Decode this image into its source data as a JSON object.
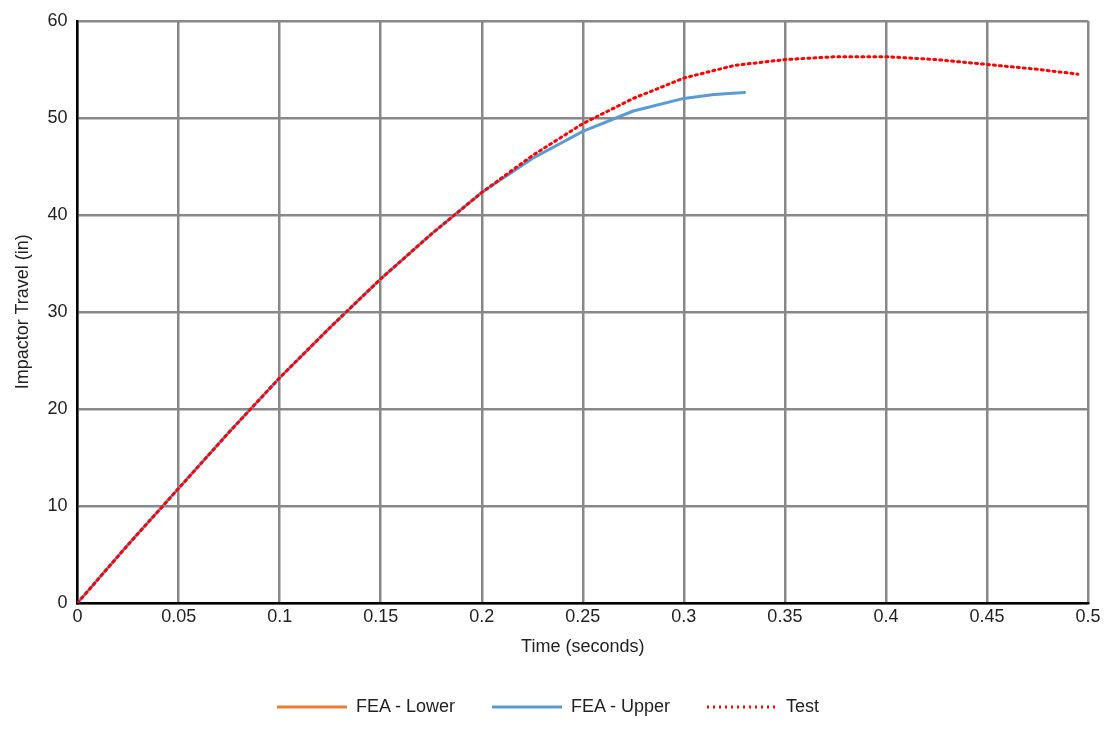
{
  "chart_data": {
    "type": "line",
    "xlabel": "Time (seconds)",
    "ylabel": "Impactor Travel (in)",
    "xlim": [
      0,
      0.5
    ],
    "xticks": [
      0,
      0.05,
      0.1,
      0.15,
      0.2,
      0.25,
      0.3,
      0.35,
      0.4,
      0.45,
      0.5
    ],
    "ylim": [
      0,
      60
    ],
    "yticks": [
      0,
      10,
      20,
      30,
      40,
      50,
      60
    ],
    "grid": true,
    "legend": "bottom",
    "marker": "none",
    "series": [
      {
        "name": "FEA - Lower",
        "color": "#ed7d31",
        "line_style": "solid"
      },
      {
        "name": "FEA - Upper",
        "color": "#5b9bd5",
        "line_style": "solid",
        "x": [
          0,
          0.025,
          0.05,
          0.075,
          0.1,
          0.125,
          0.15,
          0.175,
          0.2,
          0.225,
          0.25,
          0.275,
          0.3,
          0.315,
          0.33
        ],
        "values": [
          0,
          6,
          11.8,
          17.6,
          23.2,
          28.4,
          33.4,
          38,
          42.3,
          45.8,
          48.6,
          50.7,
          52.0,
          52.4,
          52.6
        ]
      },
      {
        "name": "Test",
        "color": "#ff0000",
        "line_style": "dotted",
        "x": [
          0,
          0.025,
          0.05,
          0.075,
          0.1,
          0.125,
          0.15,
          0.175,
          0.2,
          0.225,
          0.25,
          0.275,
          0.3,
          0.325,
          0.35,
          0.375,
          0.4,
          0.425,
          0.45,
          0.475,
          0.495
        ],
        "values": [
          0,
          6,
          11.8,
          17.6,
          23.2,
          28.4,
          33.4,
          38,
          42.3,
          46.1,
          49.4,
          52.0,
          54.1,
          55.4,
          56.0,
          56.3,
          56.3,
          56.0,
          55.5,
          55.0,
          54.5
        ]
      }
    ]
  }
}
